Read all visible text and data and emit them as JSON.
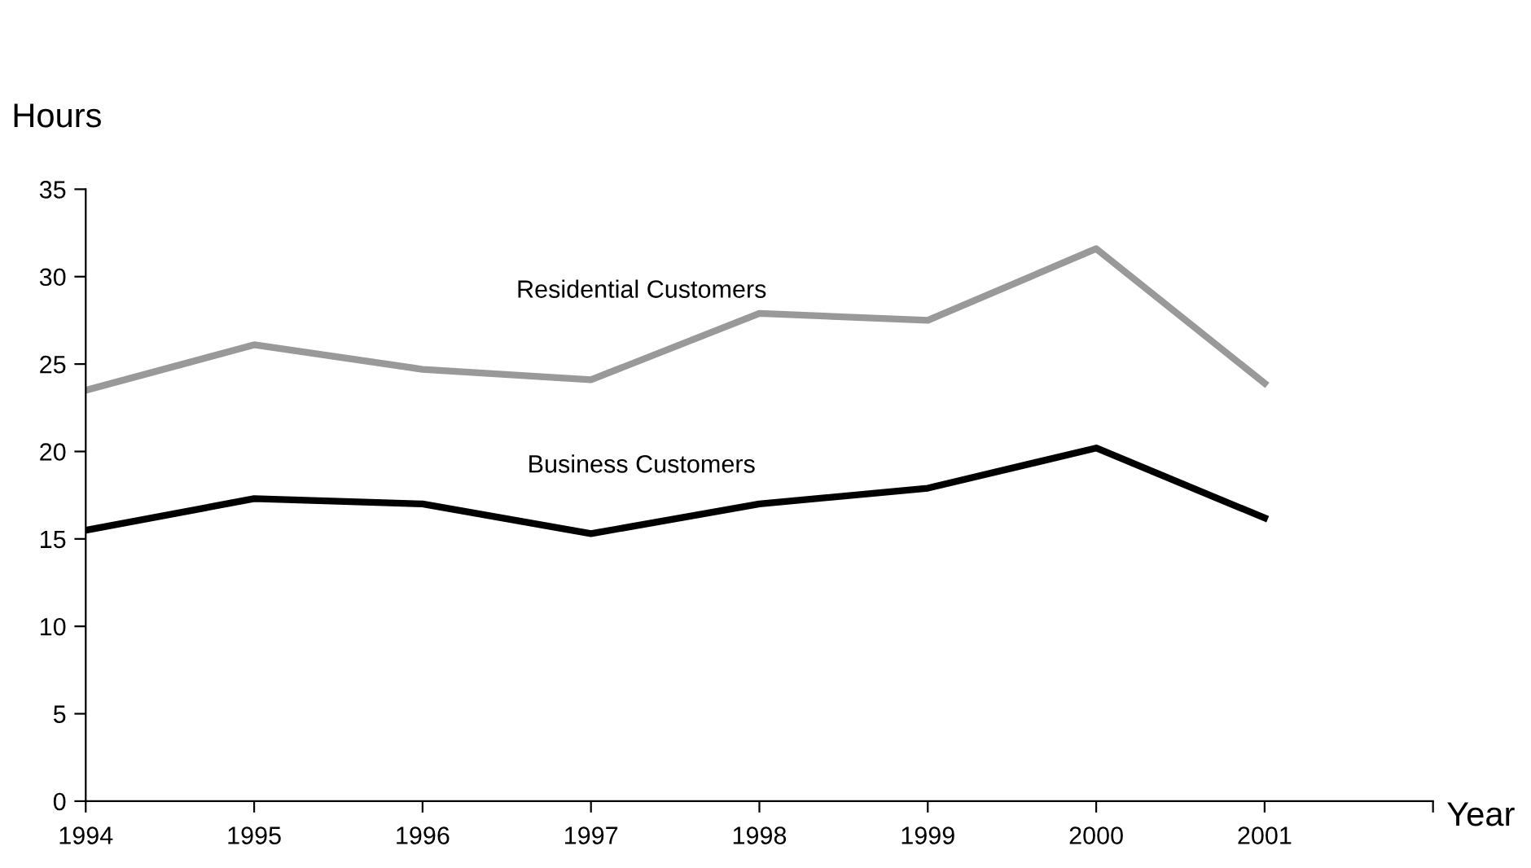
{
  "chart_data": {
    "type": "line",
    "xlabel": "Year",
    "ylabel": "Hours",
    "x": [
      1994,
      1995,
      1996,
      1997,
      1998,
      1999,
      2000,
      2001
    ],
    "series": [
      {
        "name": "Residential Customers",
        "color": "#999999",
        "values": [
          23.5,
          26.1,
          24.7,
          24.1,
          27.9,
          27.5,
          31.6,
          23.9
        ]
      },
      {
        "name": "Business Customers",
        "color": "#000000",
        "values": [
          15.5,
          17.3,
          17.0,
          15.3,
          17.0,
          17.9,
          20.2,
          16.2
        ]
      }
    ],
    "xlim": [
      1994,
      2002
    ],
    "xticks": [
      1994,
      1995,
      1996,
      1997,
      1998,
      1999,
      2000,
      2001,
      {
        "value": 2002,
        "label": null
      }
    ],
    "ylim": [
      0,
      35
    ],
    "yticks": [
      0,
      5,
      10,
      15,
      20,
      25,
      30,
      35
    ],
    "grid": false,
    "legend": false,
    "marker": "none",
    "line_style": "solid"
  }
}
